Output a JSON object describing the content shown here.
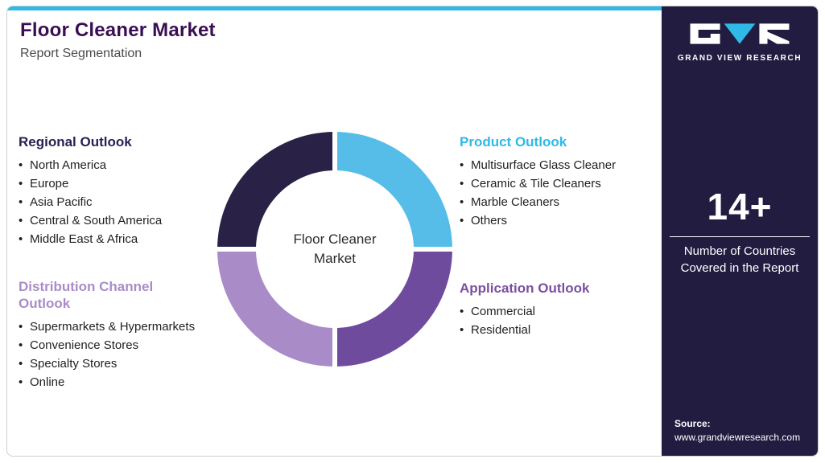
{
  "header": {
    "title": "Floor Cleaner Market",
    "subtitle": "Report Segmentation"
  },
  "sections": {
    "regional": {
      "title": "Regional Outlook",
      "items": [
        "North America",
        "Europe",
        "Asia Pacific",
        "Central & South America",
        "Middle East & Africa"
      ]
    },
    "distribution": {
      "title": "Distribution Channel Outlook",
      "items": [
        "Supermarkets & Hypermarkets",
        "Convenience Stores",
        "Specialty Stores",
        "Online"
      ]
    },
    "product": {
      "title": "Product Outlook",
      "items": [
        "Multisurface Glass Cleaner",
        "Ceramic & Tile Cleaners",
        "Marble Cleaners",
        "Others"
      ]
    },
    "application": {
      "title": "Application Outlook",
      "items": [
        "Commercial",
        "Residential"
      ]
    }
  },
  "donut": {
    "center_label": "Floor Cleaner Market",
    "segments": [
      {
        "name": "product-outlook",
        "color": "#56bde9"
      },
      {
        "name": "application-outlook",
        "color": "#6f4b9e"
      },
      {
        "name": "distribution-channel-outlook",
        "color": "#a98cc7"
      },
      {
        "name": "regional-outlook",
        "color": "#2a2147"
      }
    ]
  },
  "sidebar": {
    "brand": "GRAND VIEW RESEARCH",
    "count": "14+",
    "caption": "Number of Countries Covered in the Report",
    "source_label": "Source:",
    "source_url": "www.grandviewresearch.com"
  },
  "colors": {
    "accent_cyan": "#2fb9e6",
    "panel_dark": "#221c41",
    "title_purple": "#3a0e52",
    "heading_navy": "#262254",
    "heading_lavender": "#a98cc7",
    "heading_purple": "#7b4fa0",
    "text_dark": "#1f1f1f"
  }
}
